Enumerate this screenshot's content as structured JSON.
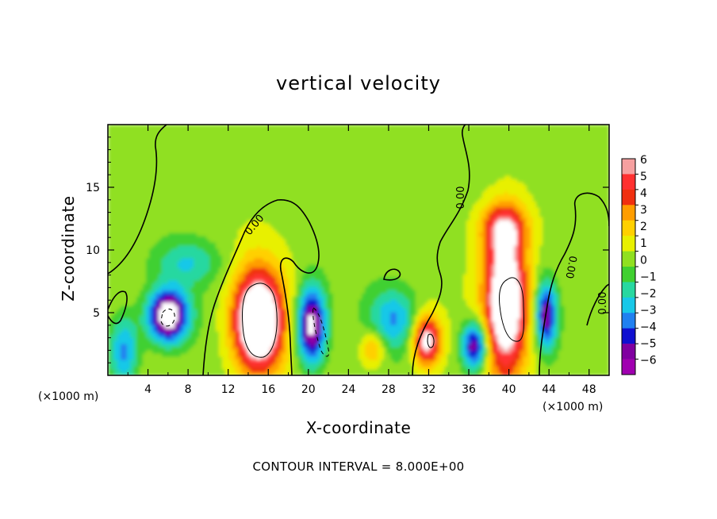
{
  "chart_data": {
    "type": "heatmap",
    "title": "vertical velocity",
    "xlabel": "X-coordinate",
    "ylabel": "Z-coordinate",
    "x_unit": "(×1000 m)",
    "x_unit_right": "(×1000 m)",
    "xlim": [
      0,
      50
    ],
    "ylim": [
      0,
      20
    ],
    "x_ticks": [
      4,
      8,
      12,
      16,
      20,
      24,
      28,
      32,
      36,
      40,
      44,
      48
    ],
    "y_ticks": [
      5,
      10,
      15
    ],
    "colorbar": {
      "levels": [
        6,
        5,
        4,
        3,
        2,
        1,
        0,
        -1,
        -2,
        -3,
        -4,
        -5,
        -6
      ],
      "colors": [
        "#f6a0a0",
        "#ff3030",
        "#f03010",
        "#ff9d00",
        "#ffd000",
        "#e8f000",
        "#90e020",
        "#40d030",
        "#28d8a0",
        "#18c8e8",
        "#2080f0",
        "#1010d0",
        "#8000a0",
        "#a000b0"
      ],
      "overflow_color": "#ffffff"
    },
    "contour_note": "CONTOUR INTERVAL = 8.000E+00",
    "contour_labels": [
      "0.00",
      "0.00",
      "0.00",
      "0.00"
    ],
    "features": [
      {
        "kind": "updraft",
        "x": 15,
        "z": 4.3,
        "rx": 3.2,
        "rz": 5.2,
        "peak": 10
      },
      {
        "kind": "updraft",
        "x": 39.7,
        "z": 6,
        "rx": 2.8,
        "rz": 7.5,
        "peak": 9
      },
      {
        "kind": "updraft",
        "x": 39.5,
        "z": 11.8,
        "rx": 3,
        "rz": 2.5,
        "peak": 4
      },
      {
        "kind": "updraft",
        "x": 31.8,
        "z": 2.8,
        "rx": 1.8,
        "rz": 2.6,
        "peak": 7
      },
      {
        "kind": "updraft",
        "x": 26.5,
        "z": 2.2,
        "rx": 1.5,
        "rz": 1.8,
        "peak": 3
      },
      {
        "kind": "downdraft",
        "x": 6,
        "z": 4.8,
        "rx": 2.5,
        "rz": 2.6,
        "peak": -9
      },
      {
        "kind": "downdraft",
        "x": 20.3,
        "z": 4,
        "rx": 1.8,
        "rz": 3.8,
        "peak": -8
      },
      {
        "kind": "downdraft",
        "x": 36.6,
        "z": 2.4,
        "rx": 1.6,
        "rz": 2.4,
        "peak": -7
      },
      {
        "kind": "downdraft",
        "x": 43.7,
        "z": 4.8,
        "rx": 1.3,
        "rz": 3.2,
        "peak": -6.5
      },
      {
        "kind": "downdraft",
        "x": 8,
        "z": 9,
        "rx": 4,
        "rz": 2.2,
        "peak": -2.4
      },
      {
        "kind": "downdraft",
        "x": 1.6,
        "z": 2,
        "rx": 1.8,
        "rz": 3.5,
        "peak": -4
      },
      {
        "kind": "downdraft",
        "x": 28.5,
        "z": 4.5,
        "rx": 3,
        "rz": 3,
        "peak": -3.5
      }
    ]
  }
}
